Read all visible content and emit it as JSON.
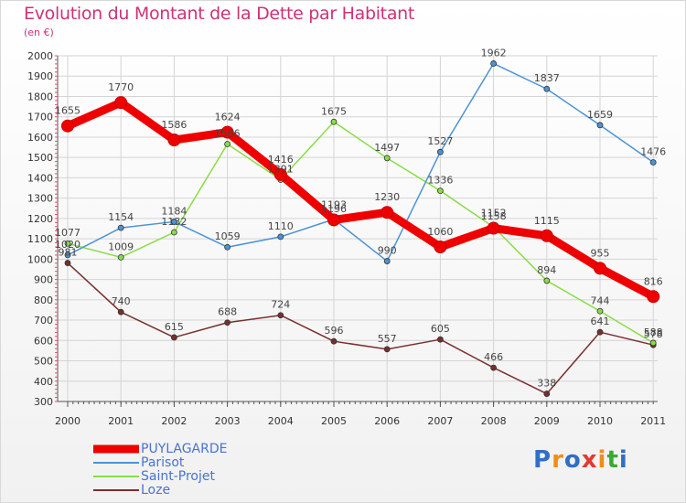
{
  "title": "Evolution du Montant de la Dette par Habitant",
  "subtitle": "(en €)",
  "logo": {
    "text": "Proxiti",
    "colors": [
      "#2f6fc6",
      "#f08c1c",
      "#2f6fc6",
      "#e23b2e",
      "#f08c1c",
      "#3aaa35",
      "#2f6fc6"
    ]
  },
  "chart_data": {
    "type": "line",
    "title": "Evolution du Montant de la Dette par Habitant",
    "subtitle": "(en €)",
    "xlabel": "",
    "ylabel": "",
    "x": [
      "2000",
      "2001",
      "2002",
      "2003",
      "2004",
      "2005",
      "2006",
      "2007",
      "2008",
      "2009",
      "2010",
      "2011"
    ],
    "yticks": [
      300,
      400,
      500,
      600,
      700,
      800,
      900,
      1000,
      1100,
      1200,
      1300,
      1400,
      1500,
      1600,
      1700,
      1800,
      1900,
      2000
    ],
    "ylim": [
      300,
      2000
    ],
    "grid": true,
    "legend": "bottom-left",
    "series": [
      {
        "name": "Loze",
        "color": "#7a2e2e",
        "values": [
          981,
          740,
          615,
          688,
          724,
          596,
          557,
          605,
          466,
          338,
          641,
          578
        ]
      },
      {
        "name": "Saint-Projet",
        "color": "#88dd44",
        "values": [
          1077,
          1009,
          1132,
          1566,
          1391,
          1675,
          1497,
          1336,
          1158,
          894,
          744,
          588
        ]
      },
      {
        "name": "Parisot",
        "color": "#4b93d6",
        "values": [
          1020,
          1154,
          1184,
          1059,
          1110,
          1196,
          990,
          1527,
          1962,
          1837,
          1659,
          1476
        ]
      },
      {
        "name": "PUYLAGARDE",
        "color": "#ee0000",
        "values": [
          1655,
          1770,
          1586,
          1624,
          1416,
          1193,
          1230,
          1060,
          1152,
          1115,
          955,
          816
        ]
      }
    ]
  },
  "legend_items": [
    {
      "name": "PUYLAGARDE",
      "color": "#ee0000",
      "thick": true
    },
    {
      "name": "Parisot",
      "color": "#4b93d6",
      "thick": false
    },
    {
      "name": "Saint-Projet",
      "color": "#88dd44",
      "thick": false
    },
    {
      "name": "Loze",
      "color": "#7a2e2e",
      "thick": false
    }
  ]
}
